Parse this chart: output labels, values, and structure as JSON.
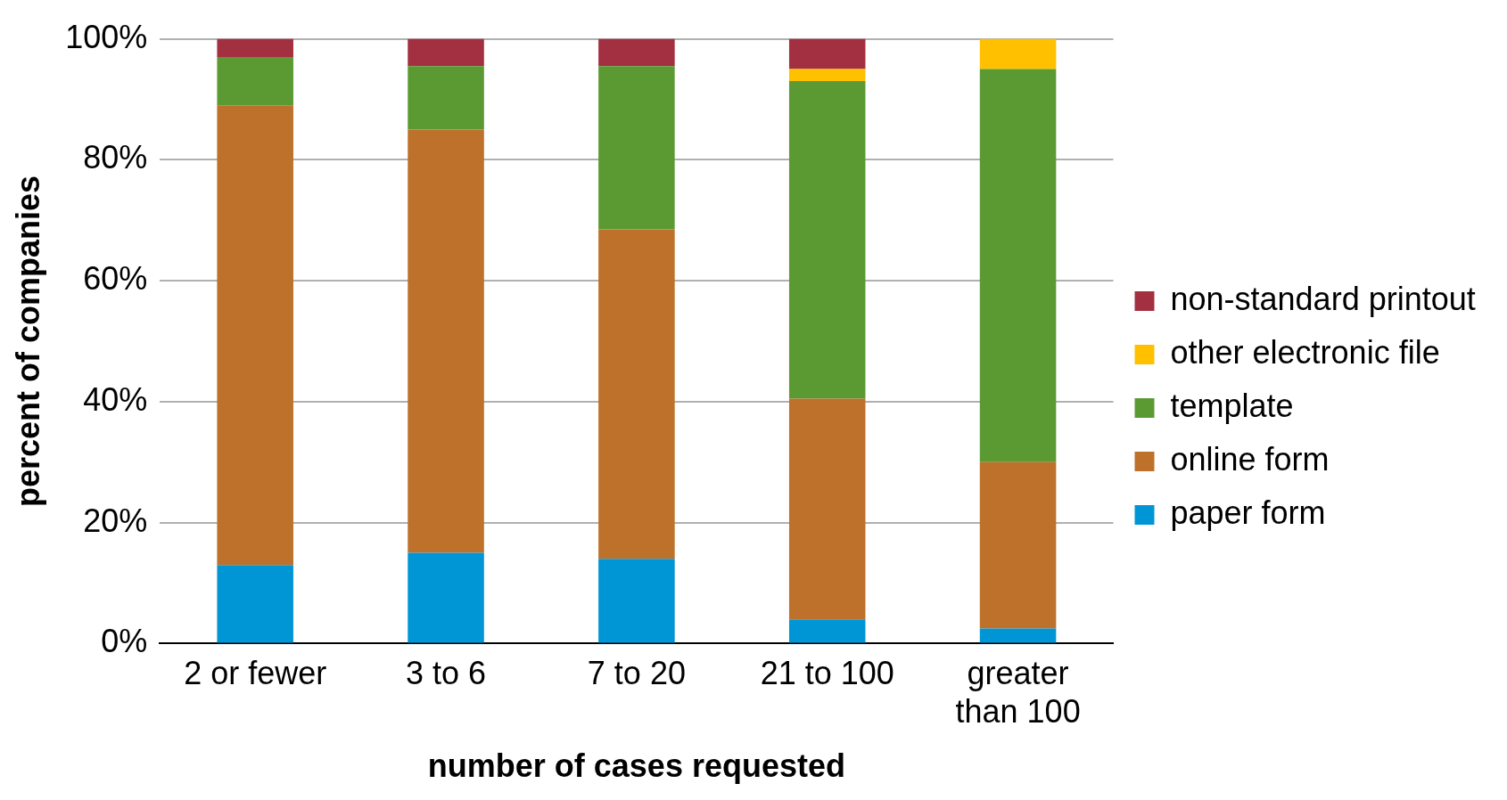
{
  "chart_data": {
    "type": "bar",
    "stacked": true,
    "xlabel": "number of cases requested",
    "ylabel": "percent of companies",
    "categories": [
      "2 or fewer",
      "3 to 6",
      "7 to 20",
      "21 to 100",
      "greater than 100"
    ],
    "series": [
      {
        "name": "paper form",
        "color": "#0096d6",
        "values": [
          13,
          15,
          14,
          4,
          2.5
        ]
      },
      {
        "name": "online form",
        "color": "#bd712a",
        "values": [
          76,
          70,
          54.5,
          36.5,
          27.5
        ]
      },
      {
        "name": "template",
        "color": "#5b9a32",
        "values": [
          8,
          10.5,
          27,
          52.5,
          65
        ]
      },
      {
        "name": "other electronic file",
        "color": "#ffc000",
        "values": [
          0,
          0,
          0,
          2,
          5
        ]
      },
      {
        "name": "non-standard printout",
        "color": "#a33040",
        "values": [
          3,
          4.5,
          4.5,
          5,
          0
        ]
      }
    ],
    "ylim": [
      0,
      100
    ],
    "yticks": [
      {
        "value": 0,
        "label": "0%"
      },
      {
        "value": 20,
        "label": "20%"
      },
      {
        "value": 40,
        "label": "40%"
      },
      {
        "value": 60,
        "label": "60%"
      },
      {
        "value": 80,
        "label": "80%"
      },
      {
        "value": 100,
        "label": "100%"
      }
    ],
    "grid": "y",
    "legend": "right"
  }
}
